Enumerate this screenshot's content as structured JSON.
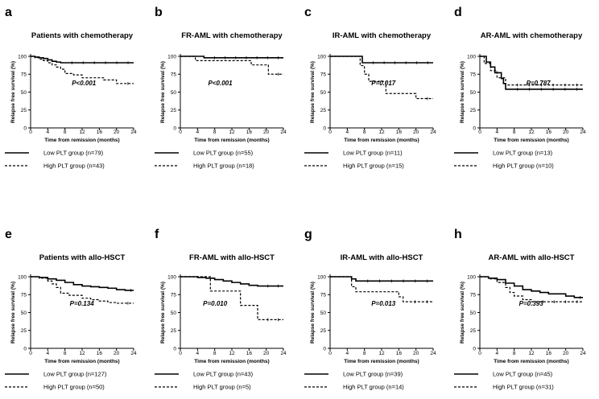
{
  "figure": {
    "ylabel": "Relapse free survival (%)",
    "xlabel": "Time from remission (months)"
  },
  "chart_data": [
    {
      "type": "line",
      "letter": "a",
      "title": "Patients with chemotherapy",
      "xlabel": "Time from remission (months)",
      "ylabel": "Relapse free survival (%)",
      "xlim": [
        0,
        24
      ],
      "ylim": [
        0,
        100
      ],
      "xticks": [
        0,
        4,
        8,
        12,
        16,
        20,
        24
      ],
      "yticks": [
        0,
        25,
        50,
        75,
        100
      ],
      "p_value": "P<0.001",
      "series": [
        {
          "name": "Low PLT group (n=79)",
          "style": "solid",
          "points": [
            [
              0,
              100
            ],
            [
              1,
              99
            ],
            [
              2,
              98
            ],
            [
              3,
              97
            ],
            [
              4,
              95
            ],
            [
              5,
              93
            ],
            [
              6,
              92
            ],
            [
              7,
              91
            ],
            [
              24,
              91
            ]
          ]
        },
        {
          "name": "High PLT group (n=43)",
          "style": "dashed",
          "points": [
            [
              0,
              100
            ],
            [
              1,
              98
            ],
            [
              2,
              96
            ],
            [
              3,
              94
            ],
            [
              4,
              91
            ],
            [
              5,
              88
            ],
            [
              6,
              85
            ],
            [
              7,
              82
            ],
            [
              8,
              76
            ],
            [
              10,
              74
            ],
            [
              12,
              70
            ],
            [
              16,
              70
            ],
            [
              17,
              67
            ],
            [
              20,
              62
            ],
            [
              24,
              62
            ]
          ]
        }
      ]
    },
    {
      "type": "line",
      "letter": "b",
      "title": "FR-AML with chemotherapy",
      "xlabel": "Time from remission (months)",
      "ylabel": "Relapse free survival (%)",
      "xlim": [
        0,
        24
      ],
      "ylim": [
        0,
        100
      ],
      "xticks": [
        0,
        4,
        8,
        12,
        16,
        20,
        24
      ],
      "yticks": [
        0,
        25,
        50,
        75,
        100
      ],
      "p_value": "P<0.001",
      "series": [
        {
          "name": "Low PLT group (n=55)",
          "style": "solid",
          "points": [
            [
              0,
              100
            ],
            [
              5,
              100
            ],
            [
              5.5,
              98
            ],
            [
              24,
              98
            ]
          ]
        },
        {
          "name": "High PLT group (n=18)",
          "style": "dashed",
          "points": [
            [
              0,
              100
            ],
            [
              3,
              100
            ],
            [
              3.5,
              94
            ],
            [
              16,
              94
            ],
            [
              16.5,
              88
            ],
            [
              20,
              88
            ],
            [
              20.5,
              75
            ],
            [
              24,
              75
            ]
          ]
        }
      ]
    },
    {
      "type": "line",
      "letter": "c",
      "title": "IR-AML with chemotherapy",
      "xlabel": "Time from remission (months)",
      "ylabel": "Relapse free survival (%)",
      "xlim": [
        0,
        24
      ],
      "ylim": [
        0,
        100
      ],
      "xticks": [
        0,
        4,
        8,
        12,
        16,
        20,
        24
      ],
      "yticks": [
        0,
        25,
        50,
        75,
        100
      ],
      "p_value": "P=0.017",
      "series": [
        {
          "name": "Low PLT group (n=11)",
          "style": "solid",
          "points": [
            [
              0,
              100
            ],
            [
              7,
              100
            ],
            [
              7.5,
              91
            ],
            [
              24,
              91
            ]
          ]
        },
        {
          "name": "High PLT group (n=15)",
          "style": "dashed",
          "points": [
            [
              0,
              100
            ],
            [
              6,
              100
            ],
            [
              7,
              87
            ],
            [
              8,
              75
            ],
            [
              9,
              65
            ],
            [
              12,
              65
            ],
            [
              13,
              48
            ],
            [
              19,
              48
            ],
            [
              20,
              41
            ],
            [
              24,
              41
            ]
          ]
        }
      ]
    },
    {
      "type": "line",
      "letter": "d",
      "title": "AR-AML with chemotherapy",
      "xlabel": "Time from remission (months)",
      "ylabel": "Relapse free survival (%)",
      "xlim": [
        0,
        24
      ],
      "ylim": [
        0,
        100
      ],
      "xticks": [
        0,
        4,
        8,
        12,
        16,
        20,
        24
      ],
      "yticks": [
        0,
        25,
        50,
        75,
        100
      ],
      "p_value": "P=0.787",
      "series": [
        {
          "name": "Low PLT group (n=13)",
          "style": "solid",
          "points": [
            [
              0,
              100
            ],
            [
              1,
              100
            ],
            [
              1.5,
              92
            ],
            [
              2.5,
              85
            ],
            [
              3.5,
              77
            ],
            [
              5,
              69
            ],
            [
              5.5,
              62
            ],
            [
              6,
              54
            ],
            [
              24,
              54
            ]
          ]
        },
        {
          "name": "High PLT group (n=10)",
          "style": "dashed",
          "points": [
            [
              0,
              100
            ],
            [
              1,
              90
            ],
            [
              2.5,
              80
            ],
            [
              4,
              70
            ],
            [
              6,
              60
            ],
            [
              24,
              60
            ]
          ]
        }
      ]
    },
    {
      "type": "line",
      "letter": "e",
      "title": "Patients with allo-HSCT",
      "xlabel": "Time from remission (months)",
      "ylabel": "Relapse free survival (%)",
      "xlim": [
        0,
        24
      ],
      "ylim": [
        0,
        100
      ],
      "xticks": [
        0,
        4,
        8,
        12,
        16,
        20,
        24
      ],
      "yticks": [
        0,
        25,
        50,
        75,
        100
      ],
      "p_value": "P=0.134",
      "series": [
        {
          "name": "Low PLT group (n=127)",
          "style": "solid",
          "points": [
            [
              0,
              100
            ],
            [
              2,
              99
            ],
            [
              4,
              97
            ],
            [
              6,
              95
            ],
            [
              8,
              92
            ],
            [
              10,
              89
            ],
            [
              12,
              87
            ],
            [
              14,
              86
            ],
            [
              16,
              85
            ],
            [
              18,
              84
            ],
            [
              20,
              82
            ],
            [
              22,
              81
            ],
            [
              24,
              81
            ]
          ]
        },
        {
          "name": "High PLT group (n=50)",
          "style": "dashed",
          "points": [
            [
              0,
              100
            ],
            [
              2,
              98
            ],
            [
              4,
              94
            ],
            [
              5,
              90
            ],
            [
              6,
              85
            ],
            [
              7,
              77
            ],
            [
              9,
              74
            ],
            [
              12,
              70
            ],
            [
              14,
              68
            ],
            [
              16,
              66
            ],
            [
              18,
              64
            ],
            [
              20,
              63
            ],
            [
              24,
              63
            ]
          ]
        }
      ]
    },
    {
      "type": "line",
      "letter": "f",
      "title": "FR-AML with allo-HSCT",
      "xlabel": "Time from remission (months)",
      "ylabel": "Relapse free survival (%)",
      "xlim": [
        0,
        24
      ],
      "ylim": [
        0,
        100
      ],
      "xticks": [
        0,
        4,
        8,
        12,
        16,
        20,
        24
      ],
      "yticks": [
        0,
        25,
        50,
        75,
        100
      ],
      "p_value": "P=0.010",
      "series": [
        {
          "name": "Low PLT group (n=43)",
          "style": "solid",
          "points": [
            [
              0,
              100
            ],
            [
              4,
              99
            ],
            [
              6,
              98
            ],
            [
              8,
              96
            ],
            [
              10,
              94
            ],
            [
              12,
              92
            ],
            [
              14,
              90
            ],
            [
              16,
              88
            ],
            [
              18,
              87
            ],
            [
              24,
              87
            ]
          ]
        },
        {
          "name": "High PLT group (n=5)",
          "style": "dashed",
          "points": [
            [
              0,
              100
            ],
            [
              6,
              100
            ],
            [
              7,
              80
            ],
            [
              13,
              80
            ],
            [
              14,
              60
            ],
            [
              17,
              60
            ],
            [
              18,
              40
            ],
            [
              24,
              40
            ]
          ]
        }
      ]
    },
    {
      "type": "line",
      "letter": "g",
      "title": "IR-AML with allo-HSCT",
      "xlabel": "Time from remission (months)",
      "ylabel": "Relapse free survival (%)",
      "xlim": [
        0,
        24
      ],
      "ylim": [
        0,
        100
      ],
      "xticks": [
        0,
        4,
        8,
        12,
        16,
        20,
        24
      ],
      "yticks": [
        0,
        25,
        50,
        75,
        100
      ],
      "p_value": "P=0.013",
      "series": [
        {
          "name": "Low PLT group (n=39)",
          "style": "solid",
          "points": [
            [
              0,
              100
            ],
            [
              4,
              100
            ],
            [
              5,
              97
            ],
            [
              6,
              94
            ],
            [
              24,
              94
            ]
          ]
        },
        {
          "name": "High PLT group (n=14)",
          "style": "dashed",
          "points": [
            [
              0,
              100
            ],
            [
              4,
              100
            ],
            [
              5,
              86
            ],
            [
              6,
              79
            ],
            [
              15,
              79
            ],
            [
              16,
              72
            ],
            [
              17,
              65
            ],
            [
              24,
              65
            ]
          ]
        }
      ]
    },
    {
      "type": "line",
      "letter": "h",
      "title": "AR-AML with allo-HSCT",
      "xlabel": "Time from remission (months)",
      "ylabel": "Relapse free survival (%)",
      "xlim": [
        0,
        24
      ],
      "ylim": [
        0,
        100
      ],
      "xticks": [
        0,
        4,
        8,
        12,
        16,
        20,
        24
      ],
      "yticks": [
        0,
        25,
        50,
        75,
        100
      ],
      "p_value": "P=0.393",
      "series": [
        {
          "name": "Low PLT group (n=45)",
          "style": "solid",
          "points": [
            [
              0,
              100
            ],
            [
              2,
              98
            ],
            [
              4,
              96
            ],
            [
              6,
              91
            ],
            [
              8,
              87
            ],
            [
              10,
              82
            ],
            [
              12,
              80
            ],
            [
              14,
              78
            ],
            [
              16,
              76
            ],
            [
              20,
              73
            ],
            [
              22,
              71
            ],
            [
              24,
              71
            ]
          ]
        },
        {
          "name": "High PLT group (n=31)",
          "style": "dashed",
          "points": [
            [
              0,
              100
            ],
            [
              2,
              97
            ],
            [
              4,
              92
            ],
            [
              6,
              85
            ],
            [
              7,
              78
            ],
            [
              8,
              73
            ],
            [
              10,
              68
            ],
            [
              12,
              65
            ],
            [
              24,
              65
            ]
          ]
        }
      ]
    }
  ]
}
